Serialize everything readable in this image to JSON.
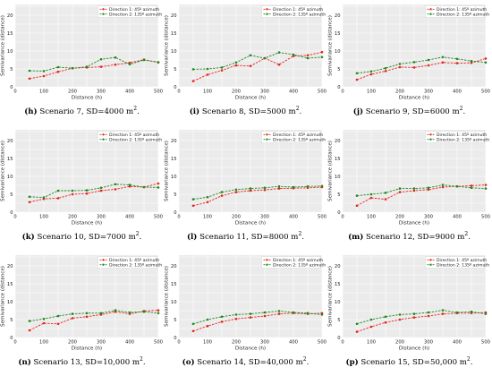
{
  "chart_data": [
    {
      "type": "line",
      "panel_id": "(h)",
      "caption_text": " Scenario 7, SD=4000 m",
      "caption_sup": "2",
      "caption_end": ".",
      "xlabel": "Distance (h)",
      "ylabel": "Semivariance (distance)",
      "xlim": [
        0,
        500
      ],
      "ylim": [
        0,
        23
      ],
      "xticks": [
        0,
        100,
        200,
        300,
        400,
        500
      ],
      "yticks": [
        0,
        5,
        10,
        15,
        20
      ],
      "grid": true,
      "legend_position": "top-right",
      "x": [
        50,
        100,
        150,
        200,
        250,
        300,
        350,
        400,
        450,
        500
      ],
      "series": [
        {
          "name": "Direction 1: 45º azimuth",
          "color": "#e8251f",
          "values": [
            2.3,
            3.0,
            4.2,
            5.2,
            5.4,
            5.6,
            6.2,
            6.7,
            7.6,
            6.8
          ]
        },
        {
          "name": "Direction 2: 135º azimuth",
          "color": "#1f8a1f",
          "values": [
            4.5,
            4.4,
            5.5,
            5.2,
            5.6,
            7.7,
            8.2,
            6.3,
            7.5,
            6.9
          ]
        }
      ]
    },
    {
      "type": "line",
      "panel_id": "(i)",
      "caption_text": " Scenario 8, SD=5000 m",
      "caption_sup": "2",
      "caption_end": ".",
      "xlabel": "Distance (h)",
      "ylabel": "Semivariance (distance)",
      "xlim": [
        0,
        500
      ],
      "ylim": [
        0,
        23
      ],
      "xticks": [
        0,
        100,
        200,
        300,
        400,
        500
      ],
      "yticks": [
        0,
        5,
        10,
        15,
        20
      ],
      "grid": true,
      "legend_position": "top-right",
      "x": [
        50,
        100,
        150,
        200,
        250,
        300,
        350,
        400,
        450,
        500
      ],
      "series": [
        {
          "name": "Direction 1: 45º azimuth",
          "color": "#e8251f",
          "values": [
            1.6,
            3.4,
            4.6,
            6.0,
            5.8,
            8.0,
            6.2,
            8.6,
            8.8,
            9.7
          ]
        },
        {
          "name": "Direction 2: 135º azimuth",
          "color": "#1f8a1f",
          "values": [
            4.9,
            5.0,
            5.4,
            6.8,
            8.8,
            8.0,
            9.6,
            9.0,
            8.0,
            8.3
          ]
        }
      ]
    },
    {
      "type": "line",
      "panel_id": "(j)",
      "caption_text": " Scenario 9, SD=6000 m",
      "caption_sup": "2",
      "caption_end": ".",
      "xlabel": "Distance (h)",
      "ylabel": "Semivariance (distance)",
      "xlim": [
        0,
        500
      ],
      "ylim": [
        0,
        23
      ],
      "xticks": [
        0,
        100,
        200,
        300,
        400,
        500
      ],
      "yticks": [
        0,
        5,
        10,
        15,
        20
      ],
      "grid": true,
      "legend_position": "top-right",
      "x": [
        50,
        100,
        150,
        200,
        250,
        300,
        350,
        400,
        450,
        500
      ],
      "series": [
        {
          "name": "Direction 1: 45º azimuth",
          "color": "#e8251f",
          "values": [
            2.0,
            3.5,
            4.4,
            5.5,
            5.4,
            6.0,
            6.8,
            6.6,
            6.7,
            7.9
          ]
        },
        {
          "name": "Direction 2: 135º azimuth",
          "color": "#1f8a1f",
          "values": [
            3.8,
            4.3,
            5.2,
            6.4,
            6.9,
            7.5,
            8.3,
            7.8,
            7.2,
            6.8
          ]
        }
      ]
    },
    {
      "type": "line",
      "panel_id": "(k)",
      "caption_text": " Scenario 10, SD=7000 m",
      "caption_sup": "2",
      "caption_end": ".",
      "xlabel": "Distance (h)",
      "ylabel": "Semivariance (distance)",
      "xlim": [
        0,
        500
      ],
      "ylim": [
        0,
        23
      ],
      "xticks": [
        0,
        100,
        200,
        300,
        400,
        500
      ],
      "yticks": [
        0,
        5,
        10,
        15,
        20
      ],
      "grid": true,
      "legend_position": "top-right",
      "x": [
        50,
        100,
        150,
        200,
        250,
        300,
        350,
        400,
        450,
        500
      ],
      "series": [
        {
          "name": "Direction 1: 45º azimuth",
          "color": "#e8251f",
          "values": [
            2.8,
            3.7,
            3.9,
            5.0,
            5.2,
            6.0,
            6.4,
            7.2,
            7.0,
            8.0
          ]
        },
        {
          "name": "Direction 2: 135º azimuth",
          "color": "#1f8a1f",
          "values": [
            4.3,
            4.1,
            6.0,
            6.0,
            6.1,
            6.8,
            7.8,
            7.6,
            7.0,
            6.9
          ]
        }
      ]
    },
    {
      "type": "line",
      "panel_id": "(l)",
      "caption_text": " Scenario 11, SD=8000 m",
      "caption_sup": "2",
      "caption_end": ".",
      "xlabel": "Distance (h)",
      "ylabel": "Semivariance (distance)",
      "xlim": [
        0,
        500
      ],
      "ylim": [
        0,
        23
      ],
      "xticks": [
        0,
        100,
        200,
        300,
        400,
        500
      ],
      "yticks": [
        0,
        5,
        10,
        15,
        20
      ],
      "grid": true,
      "legend_position": "top-right",
      "x": [
        50,
        100,
        150,
        200,
        250,
        300,
        350,
        400,
        450,
        500
      ],
      "series": [
        {
          "name": "Direction 1: 45º azimuth",
          "color": "#e8251f",
          "values": [
            1.8,
            2.8,
            4.6,
            5.6,
            6.0,
            6.2,
            6.6,
            6.7,
            6.8,
            7.0
          ]
        },
        {
          "name": "Direction 2: 135º azimuth",
          "color": "#1f8a1f",
          "values": [
            3.6,
            4.2,
            5.6,
            6.3,
            6.6,
            6.8,
            7.2,
            7.0,
            7.2,
            7.3
          ]
        }
      ]
    },
    {
      "type": "line",
      "panel_id": "(m)",
      "caption_text": " Scenario 12, SD=9000 m",
      "caption_sup": "2",
      "caption_end": ".",
      "xlabel": "Distance (h)",
      "ylabel": "Semivariance (distance)",
      "xlim": [
        0,
        500
      ],
      "ylim": [
        0,
        23
      ],
      "xticks": [
        0,
        100,
        200,
        300,
        400,
        500
      ],
      "yticks": [
        0,
        5,
        10,
        15,
        20
      ],
      "grid": true,
      "legend_position": "top-right",
      "x": [
        50,
        100,
        150,
        200,
        250,
        300,
        350,
        400,
        450,
        500
      ],
      "series": [
        {
          "name": "Direction 1: 45º azimuth",
          "color": "#e8251f",
          "values": [
            1.8,
            4.0,
            3.6,
            5.6,
            6.0,
            6.3,
            7.0,
            7.2,
            7.4,
            7.6
          ]
        },
        {
          "name": "Direction 2: 135º azimuth",
          "color": "#1f8a1f",
          "values": [
            4.6,
            5.0,
            5.4,
            6.6,
            6.6,
            6.8,
            7.6,
            7.2,
            6.8,
            6.6
          ]
        }
      ]
    },
    {
      "type": "line",
      "panel_id": "(n)",
      "caption_text": " Scenario 13, SD=10,000 m",
      "caption_sup": "2",
      "caption_end": ".",
      "xlabel": "Distance (h)",
      "ylabel": "Semivariance (distance)",
      "xlim": [
        0,
        500
      ],
      "ylim": [
        0,
        23
      ],
      "xticks": [
        0,
        100,
        200,
        300,
        400,
        500
      ],
      "yticks": [
        0,
        5,
        10,
        15,
        20
      ],
      "grid": true,
      "legend_position": "top-right",
      "x": [
        50,
        100,
        150,
        200,
        250,
        300,
        350,
        400,
        450,
        500
      ],
      "series": [
        {
          "name": "Direction 1: 45º azimuth",
          "color": "#e8251f",
          "values": [
            2.0,
            4.0,
            3.8,
            5.4,
            5.8,
            6.4,
            7.2,
            6.6,
            7.4,
            7.6
          ]
        },
        {
          "name": "Direction 2: 135º azimuth",
          "color": "#1f8a1f",
          "values": [
            4.6,
            5.2,
            6.0,
            6.6,
            6.8,
            6.8,
            7.6,
            7.0,
            7.2,
            6.8
          ]
        }
      ]
    },
    {
      "type": "line",
      "panel_id": "(o)",
      "caption_text": " Scenario 14, SD=40,000 m",
      "caption_sup": "2",
      "caption_end": ".",
      "xlabel": "Distance (h)",
      "ylabel": "Semivariance (distance)",
      "xlim": [
        0,
        500
      ],
      "ylim": [
        0,
        23
      ],
      "xticks": [
        0,
        100,
        200,
        300,
        400,
        500
      ],
      "yticks": [
        0,
        5,
        10,
        15,
        20
      ],
      "grid": true,
      "legend_position": "top-right",
      "x": [
        50,
        100,
        150,
        200,
        250,
        300,
        350,
        400,
        450,
        500
      ],
      "series": [
        {
          "name": "Direction 1: 45º azimuth",
          "color": "#e8251f",
          "values": [
            1.8,
            3.2,
            4.4,
            5.2,
            5.6,
            6.0,
            6.6,
            6.8,
            6.6,
            6.8
          ]
        },
        {
          "name": "Direction 2: 135º azimuth",
          "color": "#1f8a1f",
          "values": [
            3.8,
            5.0,
            5.8,
            6.4,
            6.6,
            7.0,
            7.4,
            7.0,
            6.8,
            6.4
          ]
        }
      ]
    },
    {
      "type": "line",
      "panel_id": "(p)",
      "caption_text": " Scenario 15, SD=50,000 m",
      "caption_sup": "2",
      "caption_end": ".",
      "xlabel": "Distance (h)",
      "ylabel": "Semivariance (distance)",
      "xlim": [
        0,
        500
      ],
      "ylim": [
        0,
        23
      ],
      "xticks": [
        0,
        100,
        200,
        300,
        400,
        500
      ],
      "yticks": [
        0,
        5,
        10,
        15,
        20
      ],
      "grid": true,
      "legend_position": "top-right",
      "x": [
        50,
        100,
        150,
        200,
        250,
        300,
        350,
        400,
        450,
        500
      ],
      "series": [
        {
          "name": "Direction 1: 45º azimuth",
          "color": "#e8251f",
          "values": [
            1.6,
            3.0,
            4.2,
            5.0,
            5.6,
            6.0,
            6.6,
            6.8,
            6.8,
            7.0
          ]
        },
        {
          "name": "Direction 2: 135º azimuth",
          "color": "#1f8a1f",
          "values": [
            3.8,
            5.0,
            5.8,
            6.4,
            6.6,
            7.0,
            7.6,
            7.0,
            7.2,
            6.6
          ]
        }
      ]
    }
  ]
}
